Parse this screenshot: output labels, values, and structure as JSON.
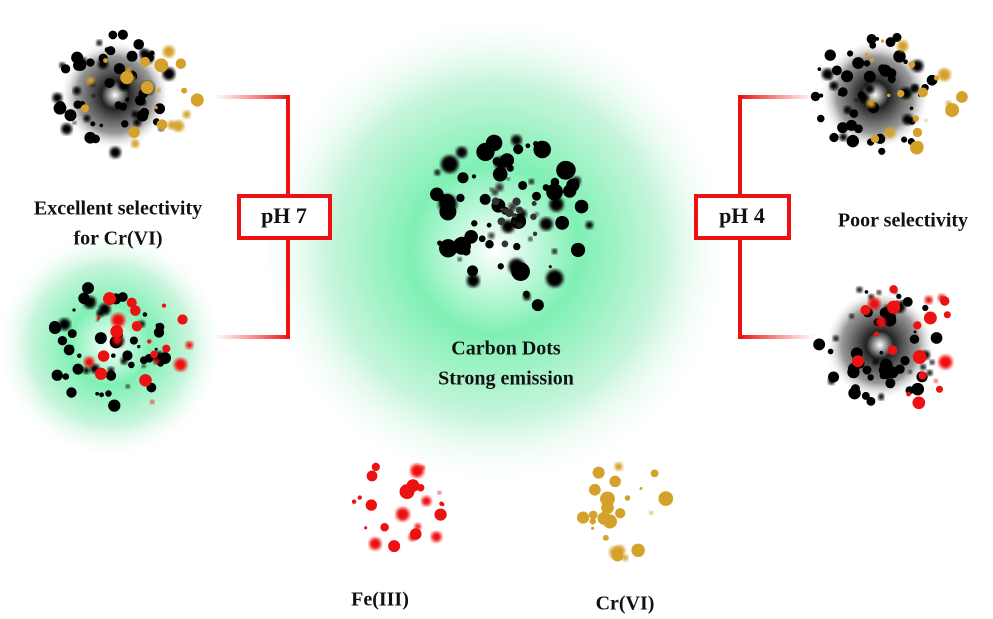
{
  "center": {
    "title": "Carbon Dots",
    "subtitle": "Strong emission"
  },
  "left": {
    "condition": "pH 7",
    "caption": [
      "Excellent selectivity",
      "for Cr(VI)"
    ]
  },
  "right": {
    "condition": "pH 4",
    "caption": [
      "Poor selectivity"
    ]
  },
  "ions": [
    "Fe(III)",
    "Cr(VI)"
  ]
}
